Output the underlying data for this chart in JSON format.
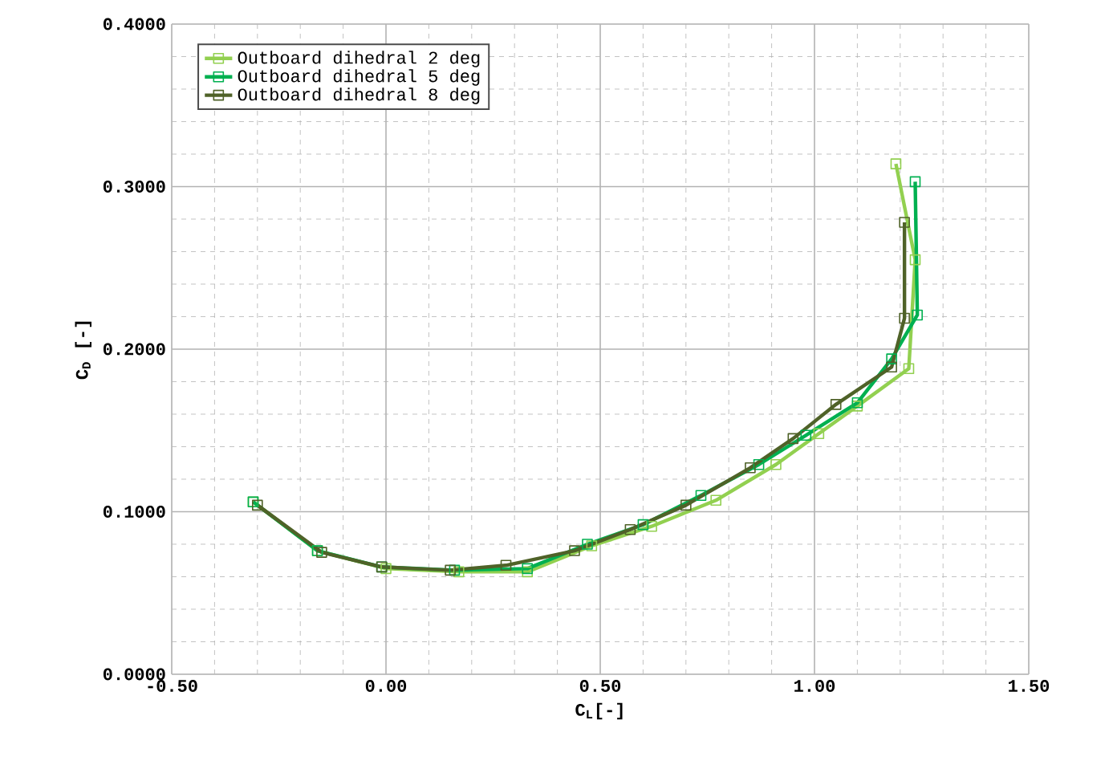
{
  "chart_data": {
    "type": "line",
    "xlabel": "C$_{L}$[-]",
    "ylabel": "C$_{D}$ [-]",
    "xlim": [
      -0.5,
      1.5
    ],
    "ylim": [
      0,
      0.4
    ],
    "xticks": [
      {
        "value": -0.5,
        "label": "-0.50"
      },
      {
        "value": 0,
        "label": "0.00"
      },
      {
        "value": 0.5,
        "label": "0.50"
      },
      {
        "value": 1,
        "label": "1.00"
      },
      {
        "value": 1.5,
        "label": "1.50"
      }
    ],
    "yticks": [
      {
        "value": 0,
        "label": "0.0000"
      },
      {
        "value": 0.1,
        "label": "0.1000"
      },
      {
        "value": 0.2,
        "label": "0.2000"
      },
      {
        "value": 0.3,
        "label": "0.3000"
      },
      {
        "value": 0.4,
        "label": "0.4000"
      }
    ],
    "grid": true,
    "legend": "top left",
    "marker": "square",
    "line_style": "solid",
    "series": [
      {
        "name": "Outboard dihedral 2 deg",
        "color": "#92d050",
        "x": [
          -0.31,
          -0.16,
          0.0,
          0.17,
          0.33,
          0.48,
          0.62,
          0.77,
          0.91,
          1.01,
          1.1,
          1.22,
          1.235,
          1.19
        ],
        "values": [
          0.106,
          0.076,
          0.065,
          0.063,
          0.063,
          0.079,
          0.091,
          0.107,
          0.129,
          0.148,
          0.165,
          0.188,
          0.255,
          0.314
        ]
      },
      {
        "name": "Outboard dihedral 5 deg",
        "color": "#00b050",
        "x": [
          -0.31,
          -0.16,
          -0.01,
          0.16,
          0.33,
          0.47,
          0.6,
          0.735,
          0.87,
          0.98,
          1.1,
          1.18,
          1.24,
          1.235
        ],
        "values": [
          0.106,
          0.076,
          0.066,
          0.064,
          0.065,
          0.08,
          0.092,
          0.11,
          0.129,
          0.147,
          0.167,
          0.194,
          0.221,
          0.303
        ]
      },
      {
        "name": "Outboard dihedral 8 deg",
        "color": "#4f6228",
        "x": [
          -0.3,
          -0.15,
          -0.01,
          0.15,
          0.28,
          0.44,
          0.57,
          0.7,
          0.85,
          0.95,
          1.05,
          1.18,
          1.21,
          1.21
        ],
        "values": [
          0.104,
          0.075,
          0.066,
          0.064,
          0.067,
          0.076,
          0.089,
          0.104,
          0.127,
          0.145,
          0.166,
          0.189,
          0.219,
          0.278
        ]
      }
    ]
  }
}
